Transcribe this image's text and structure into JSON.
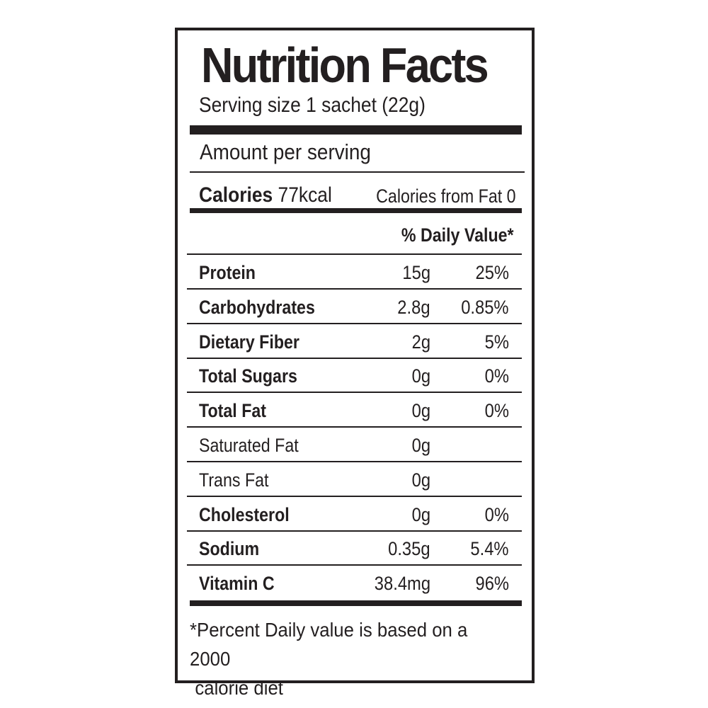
{
  "title": "Nutrition Facts",
  "serving_size": "Serving size 1 sachet (22g)",
  "amount_per_serving": "Amount per serving",
  "calories": {
    "label": "Calories",
    "value": "77kcal",
    "from_fat": "Calories from Fat 0"
  },
  "daily_value_header": "% Daily Value*",
  "nutrients": [
    {
      "name": "Protein",
      "amount": "15g",
      "dv": "25%",
      "bold": true
    },
    {
      "name": "Carbohydrates",
      "amount": "2.8g",
      "dv": "0.85%",
      "bold": true
    },
    {
      "name": "Dietary Fiber",
      "amount": "2g",
      "dv": "5%",
      "bold": true
    },
    {
      "name": "Total Sugars",
      "amount": "0g",
      "dv": "0%",
      "bold": true
    },
    {
      "name": "Total Fat",
      "amount": "0g",
      "dv": "0%",
      "bold": true
    },
    {
      "name": "Saturated Fat",
      "amount": "0g",
      "dv": "",
      "bold": false
    },
    {
      "name": "Trans Fat",
      "amount": "0g",
      "dv": "",
      "bold": false
    },
    {
      "name": "Cholesterol",
      "amount": "0g",
      "dv": "0%",
      "bold": true
    },
    {
      "name": "Sodium",
      "amount": "0.35g",
      "dv": "5.4%",
      "bold": true
    },
    {
      "name": "Vitamin C",
      "amount": "38.4mg",
      "dv": "96%",
      "bold": true
    }
  ],
  "footnote": {
    "line1": "*Percent Daily value is based on a 2000",
    "line2": "calorie diet"
  }
}
